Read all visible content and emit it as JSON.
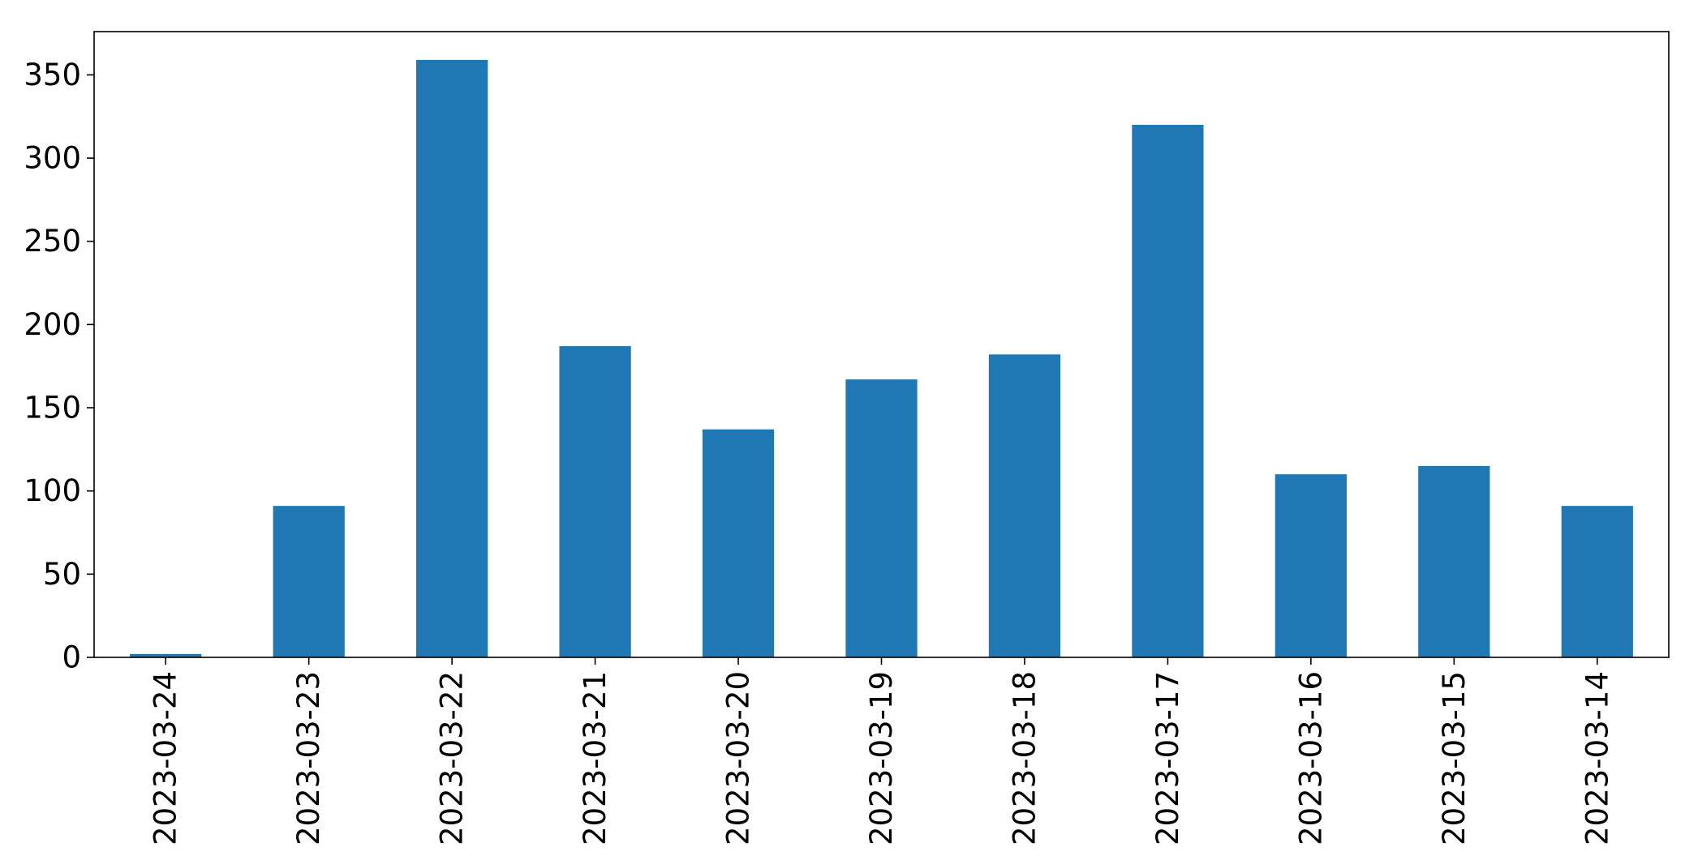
{
  "colors": {
    "bar": "#1f77b4",
    "axis": "#000000",
    "background": "#ffffff"
  },
  "chart_data": {
    "type": "bar",
    "categories": [
      "2023-03-24",
      "2023-03-23",
      "2023-03-22",
      "2023-03-21",
      "2023-03-20",
      "2023-03-19",
      "2023-03-18",
      "2023-03-17",
      "2023-03-16",
      "2023-03-15",
      "2023-03-14"
    ],
    "values": [
      2,
      91,
      359,
      187,
      137,
      167,
      182,
      320,
      110,
      115,
      91
    ],
    "title": "",
    "xlabel": "",
    "ylabel": "",
    "ylim": [
      0,
      376
    ],
    "yticks": [
      0,
      50,
      100,
      150,
      200,
      250,
      300,
      350
    ],
    "grid": false,
    "legend": "none",
    "xtick_rotation": 90
  }
}
